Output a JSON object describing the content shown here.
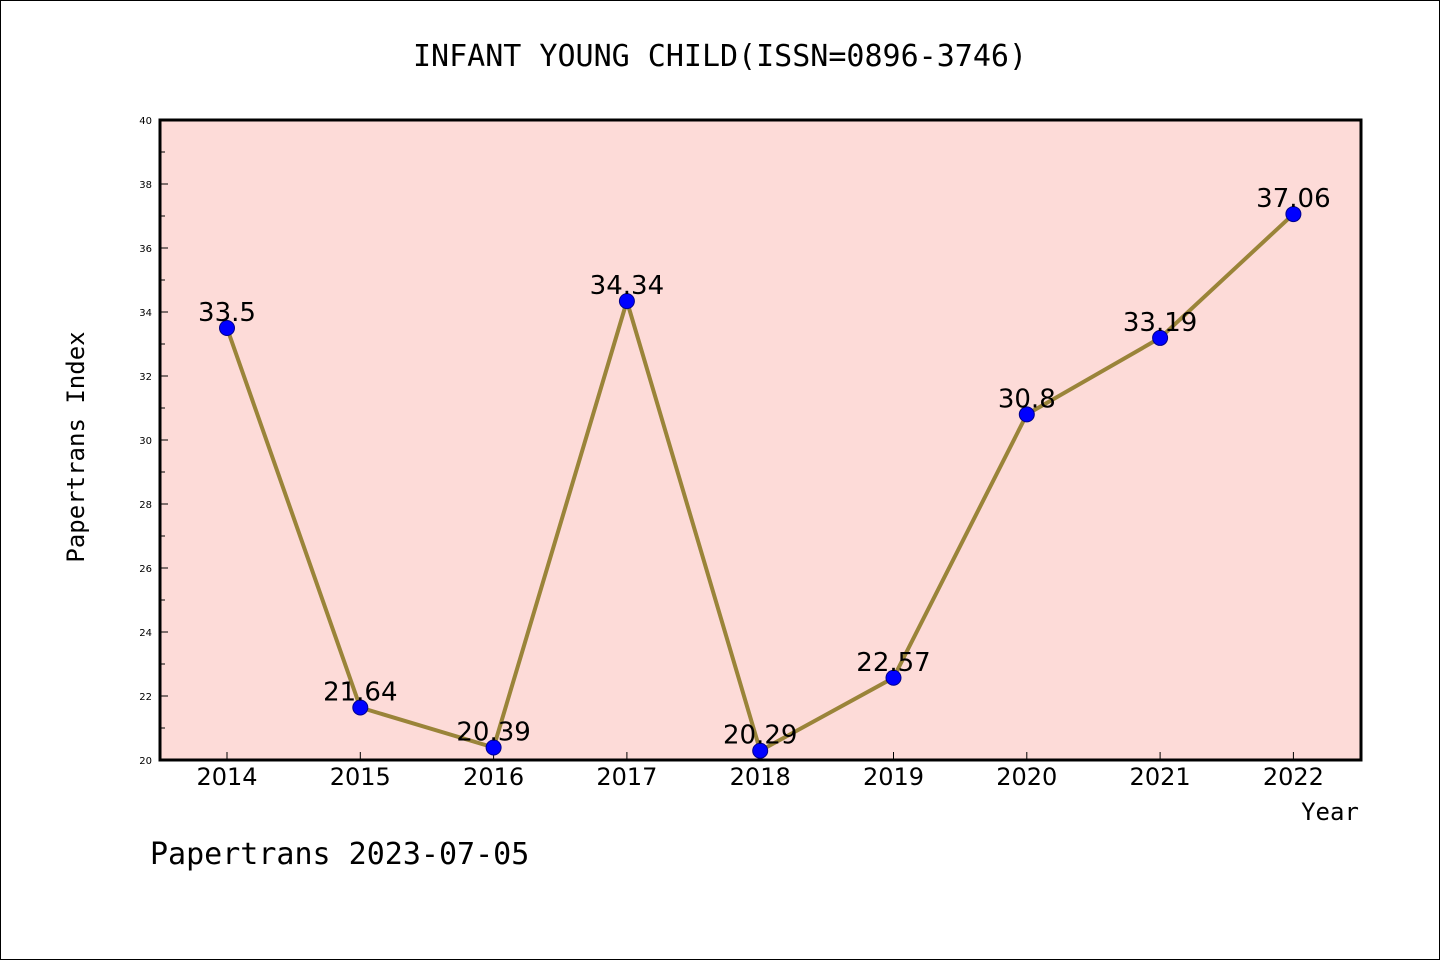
{
  "chart_data": {
    "type": "line",
    "title": "INFANT YOUNG CHILD(ISSN=0896-3746)",
    "xlabel": "Year",
    "ylabel": "Papertrans Index",
    "categories": [
      "2014",
      "2015",
      "2016",
      "2017",
      "2018",
      "2019",
      "2020",
      "2021",
      "2022"
    ],
    "series": [
      {
        "values": [
          33.5,
          21.64,
          20.39,
          34.34,
          20.29,
          22.57,
          30.8,
          33.19,
          37.06
        ],
        "data_labels": [
          "33.5",
          "21.64",
          "20.39",
          "34.34",
          "20.29",
          "22.57",
          "30.8",
          "33.19",
          "37.06"
        ]
      }
    ],
    "ylim": [
      20,
      40
    ],
    "yticks": [
      "20",
      "22",
      "24",
      "26",
      "28",
      "30",
      "32",
      "34",
      "36",
      "38",
      "40"
    ],
    "grid": false,
    "plot_background": "#fddbd8",
    "line_color": "#9a8439",
    "marker_color": "#0000ff",
    "footer": "Papertrans 2023-07-05"
  }
}
